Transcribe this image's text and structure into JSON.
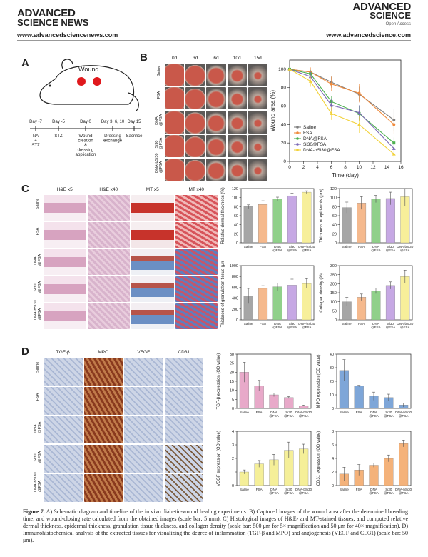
{
  "header": {
    "left_logo_line1": "ADVANCED",
    "left_logo_line2": "SCIENCE NEWS",
    "left_url": "www.advancedsciencenews.com",
    "right_logo_line1": "ADVANCED",
    "right_logo_line2": "SCIENCE",
    "right_logo_line3": "Open Access",
    "right_url": "www.advancedscience.com"
  },
  "panels": {
    "A": "A",
    "B": "B",
    "C": "C",
    "D": "D"
  },
  "panel_a": {
    "wound_label": "Wound",
    "timeline": [
      {
        "day": "Day -7",
        "event": "NA\n+\nSTZ"
      },
      {
        "day": "Day -5",
        "event": "STZ"
      },
      {
        "day": "Day 0",
        "event": "Wound\ncreation\n&\ndressing\napplication"
      },
      {
        "day": "Day 3, 6, 10",
        "event": "Dressing\nexchange"
      },
      {
        "day": "Day 15",
        "event": "Sacrifice"
      }
    ]
  },
  "panel_b_images": {
    "columns": [
      "0d",
      "3d",
      "6d",
      "10d",
      "15d"
    ],
    "rows": [
      "Saline",
      "FSA",
      "DNA\n@FSA",
      "Si30\n@FSA",
      "DNA-bSi30\n@FSA"
    ]
  },
  "panel_c_images": {
    "columns": [
      "H&E x5",
      "H&E x40",
      "MT x5",
      "MT x40"
    ],
    "rows": [
      "Saline",
      "FSA",
      "DNA\n@FSA",
      "Si30\n@FSA",
      "DNA-bSi30\n@FSA"
    ]
  },
  "panel_d_images": {
    "columns": [
      "TGF-β",
      "MPO",
      "VEGF",
      "CD31"
    ],
    "rows": [
      "Saline",
      "FSA",
      "DNA\n@FSA",
      "Si30\n@FSA",
      "DNA-bSi30\n@FSA"
    ]
  },
  "colors": {
    "saline": "#7f7f7f",
    "fsa": "#f08a3c",
    "dna": "#4caf50",
    "si30": "#7b68b5",
    "dnab": "#f2d23a",
    "bar_saline": "#a6a6a6",
    "bar_fsa": "#f5b98d",
    "bar_dna": "#90d08a",
    "bar_si30": "#c6a8e4",
    "bar_dnab": "#f7ef9a",
    "pink": "#e8a9c9",
    "blue": "#7ea6d8",
    "yellow": "#f5ef98",
    "orange": "#f4b27a"
  },
  "caption": {
    "fig": "Figure 7.",
    "text": " A) Schematic diagram and timeline of the in vivo diabetic-wound healing experiments. B) Captured images of the wound area after the determined breeding time, and wound-closing rate calculated from the obtained images (scale bar: 5 mm). C) Histological images of H&E- and MT-stained tissues, and computed relative dermal thickness, epidermal thickness, granulation tissue thickness, and collagen density (scale bar: 500 μm for 5× magnification and 50 μm for 40× magnification). D) Immunohistochemical analysis of the extracted tissues for visualizing the degree of inflammation (TGF-β and MPO) and angiogenesis (VEGF and CD31) (scale bar: 50 μm)."
  },
  "chart_data": [
    {
      "type": "line",
      "xlabel": "Time (day)",
      "ylabel": "Wound area (%)",
      "xlim": [
        0,
        16
      ],
      "ylim": [
        0,
        110
      ],
      "x": [
        0,
        3,
        6,
        10,
        15
      ],
      "xticks": [
        0,
        2,
        4,
        6,
        8,
        10,
        12,
        14,
        16
      ],
      "yticks": [
        0,
        20,
        40,
        60,
        80,
        100
      ],
      "legend": "bottom-left",
      "series": [
        {
          "name": "Saline",
          "values": [
            100,
            97,
            86,
            73,
            45
          ]
        },
        {
          "name": "FSA",
          "values": [
            100,
            97,
            84,
            74,
            40
          ]
        },
        {
          "name": "DNA@FSA",
          "values": [
            100,
            95,
            65,
            52,
            20
          ]
        },
        {
          "name": "Si30@FSA",
          "values": [
            100,
            92,
            61,
            53,
            14
          ]
        },
        {
          "name": "DNA-bSi30@FSA",
          "values": [
            100,
            87,
            52,
            40,
            8
          ]
        }
      ],
      "errors": [
        [
          0,
          4,
          6,
          8,
          12
        ],
        [
          0,
          5,
          8,
          10,
          10
        ],
        [
          0,
          4,
          6,
          8,
          6
        ],
        [
          0,
          6,
          7,
          8,
          6
        ],
        [
          0,
          6,
          7,
          9,
          4
        ]
      ]
    },
    {
      "type": "bar",
      "ylabel": "Relative dermal thickness (%)",
      "categories": [
        "Saline",
        "FSA",
        "DNA\n@FSA",
        "Si30\n@FSA",
        "DNA-bSi30\n@FSA"
      ],
      "values": [
        80,
        85,
        97,
        104,
        112
      ],
      "errors": [
        4,
        8,
        4,
        6,
        3
      ],
      "ylim": [
        0,
        120
      ],
      "yticks": [
        0,
        20,
        40,
        60,
        80,
        100,
        120
      ]
    },
    {
      "type": "bar",
      "ylabel": "Thickness of epidermis (μm)",
      "categories": [
        "Saline",
        "FSA",
        "DNA\n@FSA",
        "Si30\n@FSA",
        "DNA-bSi30\n@FSA"
      ],
      "values": [
        78,
        88,
        97,
        98,
        102
      ],
      "errors": [
        12,
        14,
        8,
        14,
        20
      ],
      "ylim": [
        0,
        120
      ],
      "yticks": [
        0,
        20,
        40,
        60,
        80,
        100,
        120
      ]
    },
    {
      "type": "bar",
      "ylabel": "Thickness of granulation tissue (μm)",
      "categories": [
        "Saline",
        "FSA",
        "DNA\n@FSA",
        "Si30\n@FSA",
        "DNA-bSi30\n@FSA"
      ],
      "values": [
        440,
        580,
        610,
        640,
        670
      ],
      "errors": [
        140,
        50,
        70,
        110,
        90
      ],
      "ylim": [
        0,
        1000
      ],
      "yticks": [
        0,
        200,
        400,
        600,
        800,
        1000
      ]
    },
    {
      "type": "bar",
      "ylabel": "Collagen density (%)",
      "categories": [
        "Saline",
        "FSA",
        "DNA\n@FSA",
        "Si30\n@FSA",
        "DNA-bSi30\n@FSA"
      ],
      "values": [
        100,
        125,
        160,
        190,
        240
      ],
      "errors": [
        25,
        18,
        15,
        20,
        35
      ],
      "ylim": [
        0,
        300
      ],
      "yticks": [
        0,
        50,
        100,
        150,
        200,
        250,
        300
      ]
    },
    {
      "type": "bar",
      "ylabel": "TGF-β expression (OD value)",
      "categories": [
        "Saline",
        "FSA",
        "DNA\n@FSA",
        "Si30\n@FSA",
        "DNA-bSi30\n@FSA"
      ],
      "values": [
        20,
        12.5,
        7.5,
        6,
        1.5
      ],
      "errors": [
        5.5,
        3,
        1,
        0.5,
        0.3
      ],
      "ylim": [
        0,
        30
      ],
      "yticks": [
        0,
        5,
        10,
        15,
        20,
        25,
        30
      ]
    },
    {
      "type": "bar",
      "ylabel": "MPO expression (OD value)",
      "categories": [
        "Saline",
        "FSA",
        "DNA\n@FSA",
        "Si30\n@FSA",
        "DNA-bSi30\n@FSA"
      ],
      "values": [
        28,
        16.5,
        9,
        8,
        2.5
      ],
      "errors": [
        8,
        0.5,
        3,
        2.5,
        1.5
      ],
      "ylim": [
        0,
        40
      ],
      "yticks": [
        0,
        10,
        20,
        30,
        40
      ]
    },
    {
      "type": "bar",
      "ylabel": "VEGF expression (OD value)",
      "categories": [
        "Saline",
        "FSA",
        "DNA\n@FSA",
        "Si30\n@FSA",
        "DNA-bSi30\n@FSA"
      ],
      "values": [
        1.0,
        1.6,
        1.9,
        2.6,
        2.7
      ],
      "errors": [
        0.15,
        0.25,
        0.4,
        0.6,
        0.35
      ],
      "ylim": [
        0,
        4
      ],
      "yticks": [
        0,
        1,
        2,
        3,
        4
      ]
    },
    {
      "type": "bar",
      "ylabel": "CD31 expression (OD value)",
      "categories": [
        "Saline",
        "FSA",
        "DNA\n@FSA",
        "Si30\n@FSA",
        "DNA-bSi30\n@FSA"
      ],
      "values": [
        1.7,
        2.3,
        3.0,
        4.0,
        6.2
      ],
      "errors": [
        1.0,
        0.8,
        0.3,
        0.5,
        0.5
      ],
      "ylim": [
        0,
        8
      ],
      "yticks": [
        0,
        2,
        4,
        6,
        8
      ]
    }
  ]
}
